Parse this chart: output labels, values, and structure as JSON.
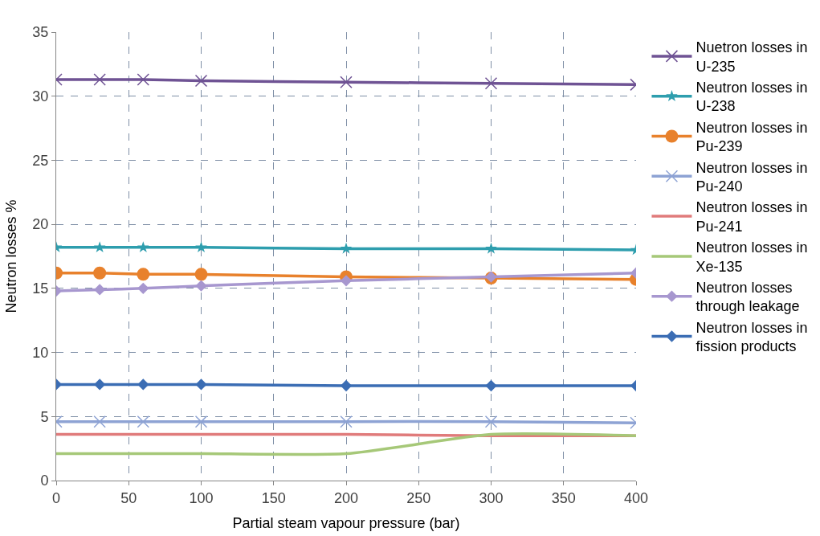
{
  "chart_data": {
    "type": "line",
    "xlabel": "Partial steam vapour pressure (bar)",
    "ylabel": "Neutron losses %",
    "x": [
      0,
      30,
      60,
      100,
      200,
      300,
      400
    ],
    "series": [
      {
        "name": "Nuetron losses in U-235",
        "color": "#6f5394",
        "marker": "cross",
        "values": [
          31.3,
          31.3,
          31.3,
          31.2,
          31.1,
          31.0,
          30.9
        ]
      },
      {
        "name": "Neutron losses in U-238",
        "color": "#2e9eae",
        "marker": "star",
        "values": [
          18.2,
          18.2,
          18.2,
          18.2,
          18.1,
          18.1,
          18.0
        ]
      },
      {
        "name": "Neutron losses in Pu-239",
        "color": "#e8812c",
        "marker": "circle",
        "values": [
          16.2,
          16.2,
          16.1,
          16.1,
          15.9,
          15.8,
          15.7
        ]
      },
      {
        "name": "Neutron losses in Pu-240",
        "color": "#8ea3d4",
        "marker": "cross",
        "values": [
          4.6,
          4.6,
          4.6,
          4.6,
          4.6,
          4.6,
          4.5
        ]
      },
      {
        "name": "Neutron losses in Pu-241",
        "color": "#e07b7b",
        "marker": "none",
        "values": [
          3.6,
          3.6,
          3.6,
          3.6,
          3.6,
          3.5,
          3.5
        ]
      },
      {
        "name": "Neutron losses in Xe-135",
        "color": "#a6c878",
        "marker": "none",
        "values": [
          2.1,
          2.1,
          2.1,
          2.1,
          2.1,
          3.6,
          3.5
        ]
      },
      {
        "name": "Neutron losses through leakage",
        "color": "#a797cf",
        "marker": "diamond",
        "values": [
          14.8,
          14.9,
          15.0,
          15.2,
          15.6,
          15.9,
          16.2
        ]
      },
      {
        "name": "Neutron losses in fission products",
        "color": "#3b6db4",
        "marker": "diamond",
        "values": [
          7.5,
          7.5,
          7.5,
          7.5,
          7.4,
          7.4,
          7.4
        ]
      }
    ],
    "xlim": [
      0,
      400
    ],
    "xticks": [
      0,
      50,
      100,
      150,
      200,
      250,
      300,
      350,
      400
    ],
    "ylim": [
      0,
      35
    ],
    "yticks": [
      0,
      5,
      10,
      15,
      20,
      25,
      30,
      35
    ],
    "grid": true,
    "legend": "right",
    "line_style": "solid"
  }
}
